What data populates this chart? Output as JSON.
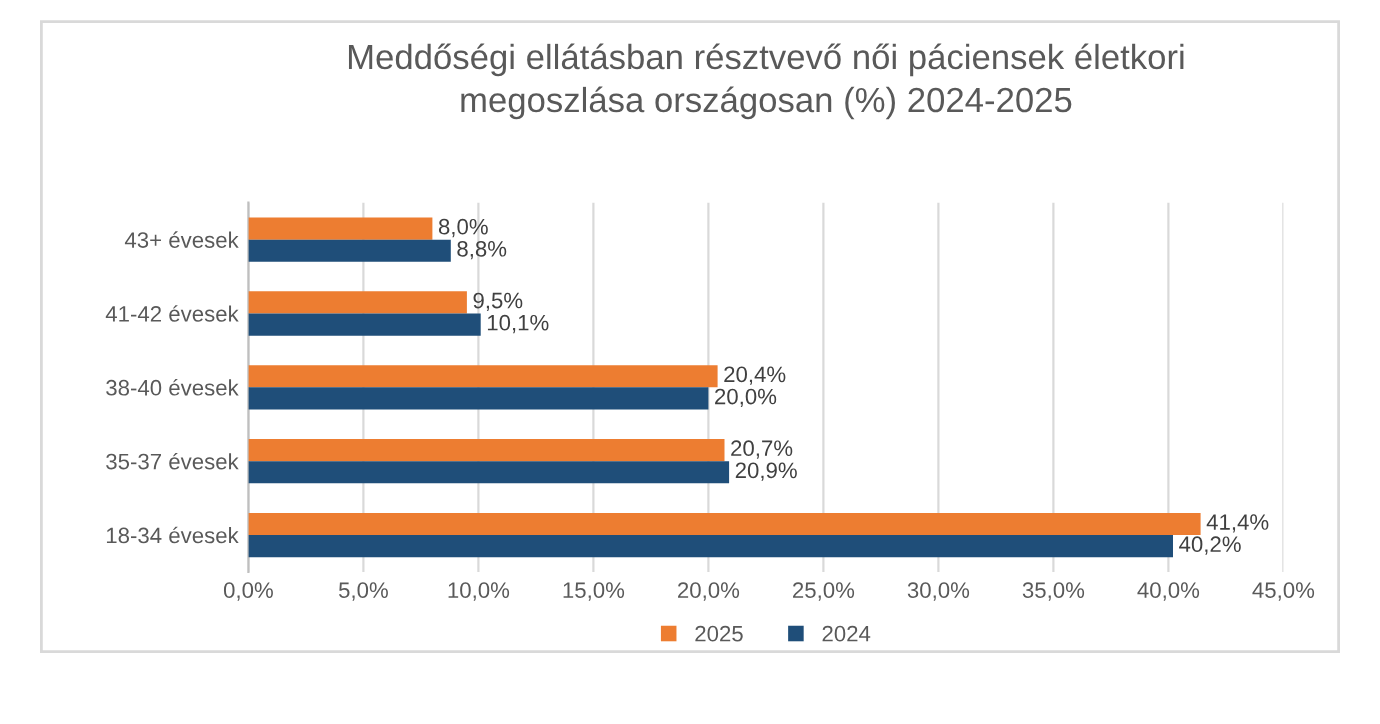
{
  "chart_data": {
    "type": "bar",
    "orientation": "horizontal",
    "title": "Meddőségi ellátásban résztvevő női páciensek életkori\nmegoszlása országosan (%) 2024-2025",
    "categories": [
      "43+ évesek",
      "41-42 évesek",
      "38-40 évesek",
      "35-37 évesek",
      "18-34 évesek"
    ],
    "series": [
      {
        "name": "2025",
        "color": "#ed7d31",
        "values": [
          8.0,
          9.5,
          20.4,
          20.7,
          41.4
        ],
        "value_labels": [
          "8,0%",
          "9,5%",
          "20,4%",
          "20,7%",
          "41,4%"
        ]
      },
      {
        "name": "2024",
        "color": "#1f4e79",
        "values": [
          8.8,
          10.1,
          20.0,
          20.9,
          40.2
        ],
        "value_labels": [
          "8,8%",
          "10,1%",
          "20,0%",
          "20,9%",
          "40,2%"
        ]
      }
    ],
    "xlim": [
      0,
      45
    ],
    "xticks": [
      {
        "value": 0,
        "label": "0,0%"
      },
      {
        "value": 5,
        "label": "5,0%"
      },
      {
        "value": 10,
        "label": "10,0%"
      },
      {
        "value": 15,
        "label": "15,0%"
      },
      {
        "value": 20,
        "label": "20,0%"
      },
      {
        "value": 25,
        "label": "25,0%"
      },
      {
        "value": 30,
        "label": "30,0%"
      },
      {
        "value": 35,
        "label": "35,0%"
      },
      {
        "value": 40,
        "label": "40,0%"
      },
      {
        "value": 45,
        "label": "45,0%"
      }
    ],
    "grid": "x",
    "legend": "bottom"
  }
}
